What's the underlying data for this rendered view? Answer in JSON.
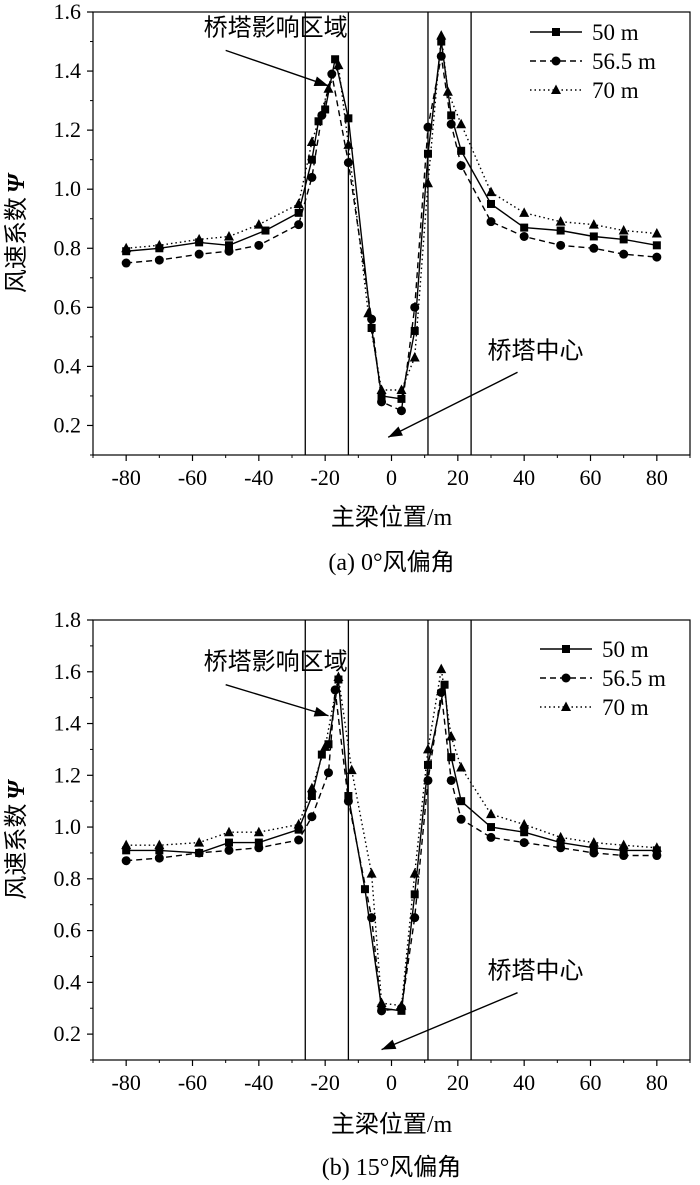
{
  "chart_data": [
    {
      "type": "line",
      "caption": "(a) 0°风偏角",
      "xlabel": "主梁位置/m",
      "ylabel": "风速系数",
      "ylabel_symbol": "Ψ",
      "xlim": [
        -90,
        90
      ],
      "ylim": [
        0.1,
        1.6
      ],
      "xticks": [
        -80,
        -60,
        -40,
        -20,
        0,
        20,
        40,
        60,
        80
      ],
      "yticks": [
        0.2,
        0.4,
        0.6,
        0.8,
        1.0,
        1.2,
        1.4,
        1.6
      ],
      "vlines": [
        -26,
        -13,
        11,
        24
      ],
      "legend": {
        "position": "top-right",
        "entries": [
          "50 m",
          "56.5 m",
          "70 m"
        ]
      },
      "annotations": [
        {
          "text": "桥塔影响区域",
          "x_from": -50,
          "y_from": 1.47,
          "x_to": -19,
          "y_to": 1.35
        },
        {
          "text": "桥塔中心",
          "x_from": 38,
          "y_from": 0.38,
          "x_to": -1,
          "y_to": 0.16
        }
      ],
      "series": [
        {
          "name": "50 m",
          "marker": "square",
          "dash": "solid",
          "x": [
            -80,
            -70,
            -58,
            -49,
            -38,
            -28,
            -24,
            -22,
            -20,
            -17,
            -13,
            -6,
            -3,
            3,
            7,
            11,
            15,
            18,
            21,
            30,
            40,
            51,
            61,
            70,
            80
          ],
          "y": [
            0.79,
            0.8,
            0.82,
            0.81,
            0.86,
            0.92,
            1.1,
            1.23,
            1.27,
            1.44,
            1.24,
            0.53,
            0.3,
            0.29,
            0.52,
            1.12,
            1.5,
            1.25,
            1.13,
            0.95,
            0.87,
            0.86,
            0.84,
            0.83,
            0.81
          ]
        },
        {
          "name": "56.5 m",
          "marker": "circle",
          "dash": "dashed",
          "x": [
            -80,
            -70,
            -58,
            -49,
            -40,
            -28,
            -24,
            -21,
            -18,
            -13,
            -6,
            -3,
            3,
            7,
            11,
            15,
            18,
            21,
            30,
            40,
            51,
            61,
            70,
            80
          ],
          "y": [
            0.75,
            0.76,
            0.78,
            0.79,
            0.81,
            0.88,
            1.04,
            1.25,
            1.39,
            1.09,
            0.56,
            0.28,
            0.25,
            0.6,
            1.21,
            1.45,
            1.22,
            1.08,
            0.89,
            0.84,
            0.81,
            0.8,
            0.78,
            0.77
          ]
        },
        {
          "name": "70 m",
          "marker": "triangle",
          "dash": "dotted",
          "x": [
            -80,
            -70,
            -58,
            -49,
            -40,
            -28,
            -24,
            -19,
            -16,
            -13,
            -7,
            -3,
            3,
            7,
            11,
            15,
            17,
            21,
            30,
            40,
            51,
            61,
            70,
            80
          ],
          "y": [
            0.8,
            0.81,
            0.83,
            0.84,
            0.88,
            0.95,
            1.16,
            1.34,
            1.42,
            1.15,
            0.58,
            0.32,
            0.32,
            0.43,
            1.02,
            1.52,
            1.33,
            1.22,
            0.99,
            0.92,
            0.89,
            0.88,
            0.86,
            0.85
          ]
        }
      ]
    },
    {
      "type": "line",
      "caption": "(b) 15°风偏角",
      "xlabel": "主梁位置/m",
      "ylabel": "风速系数",
      "ylabel_symbol": "Ψ",
      "xlim": [
        -90,
        90
      ],
      "ylim": [
        0.1,
        1.8
      ],
      "xticks": [
        -80,
        -60,
        -40,
        -20,
        0,
        20,
        40,
        60,
        80
      ],
      "yticks": [
        0.2,
        0.4,
        0.6,
        0.8,
        1.0,
        1.2,
        1.4,
        1.6,
        1.8
      ],
      "vlines": [
        -26,
        -13,
        11,
        24
      ],
      "legend": {
        "position": "top-right",
        "entries": [
          "50 m",
          "56.5 m",
          "70 m"
        ]
      },
      "annotations": [
        {
          "text": "桥塔影响区域",
          "x_from": -50,
          "y_from": 1.55,
          "x_to": -19,
          "y_to": 1.43
        },
        {
          "text": "桥塔中心",
          "x_from": 38,
          "y_from": 0.36,
          "x_to": -3,
          "y_to": 0.14
        }
      ],
      "series": [
        {
          "name": "50 m",
          "marker": "square",
          "dash": "solid",
          "x": [
            -80,
            -70,
            -58,
            -49,
            -40,
            -28,
            -24,
            -21,
            -19,
            -16,
            -13,
            -8,
            -3,
            3,
            7,
            11,
            16,
            18,
            21,
            30,
            40,
            51,
            61,
            70,
            80
          ],
          "y": [
            0.91,
            0.91,
            0.9,
            0.94,
            0.94,
            0.99,
            1.12,
            1.28,
            1.32,
            1.57,
            1.12,
            0.76,
            0.3,
            0.29,
            0.74,
            1.24,
            1.55,
            1.27,
            1.1,
            1.0,
            0.98,
            0.94,
            0.92,
            0.91,
            0.91
          ]
        },
        {
          "name": "56.5 m",
          "marker": "circle",
          "dash": "dashed",
          "x": [
            -80,
            -70,
            -58,
            -49,
            -40,
            -28,
            -24,
            -19,
            -17,
            -13,
            -6,
            -3,
            3,
            7,
            11,
            15,
            18,
            21,
            30,
            40,
            51,
            61,
            70,
            80
          ],
          "y": [
            0.87,
            0.88,
            0.9,
            0.91,
            0.92,
            0.95,
            1.04,
            1.21,
            1.53,
            1.1,
            0.65,
            0.29,
            0.3,
            0.65,
            1.18,
            1.52,
            1.18,
            1.03,
            0.96,
            0.94,
            0.92,
            0.9,
            0.89,
            0.89
          ]
        },
        {
          "name": "70 m",
          "marker": "triangle",
          "dash": "dotted",
          "x": [
            -80,
            -70,
            -58,
            -49,
            -40,
            -28,
            -24,
            -20,
            -16,
            -12,
            -6,
            -3,
            3,
            7,
            11,
            15,
            18,
            21,
            30,
            40,
            51,
            61,
            70,
            80
          ],
          "y": [
            0.93,
            0.93,
            0.94,
            0.98,
            0.98,
            1.01,
            1.15,
            1.31,
            1.58,
            1.22,
            0.82,
            0.32,
            0.31,
            0.82,
            1.3,
            1.61,
            1.35,
            1.23,
            1.05,
            1.01,
            0.96,
            0.94,
            0.93,
            0.92
          ]
        }
      ]
    }
  ]
}
